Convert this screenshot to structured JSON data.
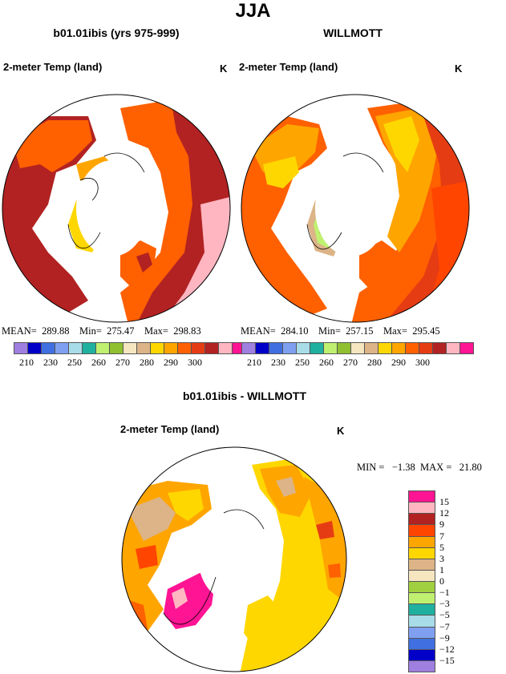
{
  "title": "JJA",
  "panels": [
    {
      "id": "model",
      "title": "b01.01ibis (yrs 975-999)",
      "variable": "2-meter Temp (land)",
      "units": "K",
      "stats": {
        "mean": "289.88",
        "min": "275.47",
        "max": "298.83"
      },
      "stats_text": "MEAN=  289.88    Min=  275.47    Max=  298.83"
    },
    {
      "id": "obs",
      "title": "WILLMOTT",
      "variable": "2-meter Temp (land)",
      "units": "K",
      "stats": {
        "mean": "284.10",
        "min": "257.15",
        "max": "295.45"
      },
      "stats_text": "MEAN=  284.10    Min=  257.15    Max=  295.45"
    },
    {
      "id": "diff",
      "title": "b01.01ibis - WILLMOTT",
      "variable": "2-meter Temp (land)",
      "units": "K",
      "stats": {
        "min": "−1.38",
        "max": "21.80"
      },
      "stats_text": "MIN =   −1.38  MAX =   21.80"
    }
  ],
  "abs_colorbar": {
    "colors": [
      "#9f7fe0",
      "#0000c8",
      "#3f6fe0",
      "#7fa0f0",
      "#a8dce8",
      "#20b0a0",
      "#c0f070",
      "#90c030",
      "#f5e6c0",
      "#dcb487",
      "#ffd700",
      "#ffa500",
      "#ff6000",
      "#e63c14",
      "#b22222",
      "#ffb6c1",
      "#ff1493"
    ],
    "labels": [
      "210",
      "230",
      "250",
      "260",
      "270",
      "280",
      "290",
      "300"
    ]
  },
  "diff_colorbar": {
    "colors": [
      "#ff1493",
      "#ffb6c1",
      "#b22222",
      "#ff4500",
      "#ffa500",
      "#ffd700",
      "#dcb487",
      "#f5e6c0",
      "#a0d040",
      "#c0f070",
      "#20b0a0",
      "#a8dce8",
      "#7fa0f0",
      "#3f6fe0",
      "#0000c8",
      "#9f7fe0"
    ],
    "labels": [
      "15",
      "12",
      "9",
      "7",
      "5",
      "3",
      "1",
      "0",
      "−1",
      "−3",
      "−5",
      "−7",
      "−9",
      "−12",
      "−15"
    ]
  }
}
